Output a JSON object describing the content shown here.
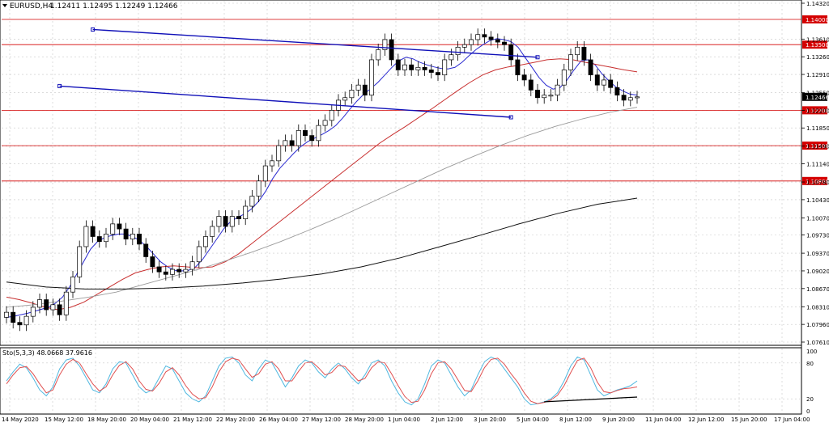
{
  "header": {
    "symbol": "EURUSD,H4",
    "ohlc": "1.12411 1.12495 1.12249 1.12466"
  },
  "colors": {
    "bull_candle": "#ffffff",
    "bear_candle": "#000000",
    "support_resistance": "#d40000",
    "channel": "#1010b8",
    "ma_fast": "#2a2ad0",
    "ma_mid": "#c83030",
    "ma_slow_gray": "#9a9a9a",
    "ma_slow_black": "#101010",
    "stoch_main": "#4fb8e0",
    "stoch_signal": "#e05050"
  },
  "chart_data": [
    {
      "type": "candlestick",
      "symbol": "EURUSD",
      "timeframe": "H4",
      "last_price": "1.12466",
      "ylim": [
        1.0761,
        1.1432
      ],
      "y_ticks": [
        "1.14320",
        "1.13610",
        "1.13260",
        "1.12910",
        "1.12550",
        "1.12200",
        "1.11850",
        "1.11490",
        "1.11140",
        "1.10780",
        "1.10430",
        "1.10070",
        "1.09730",
        "1.09370",
        "1.09020",
        "1.08670",
        "1.08310",
        "1.07960",
        "1.07610"
      ],
      "x_ticks": [
        "14 May 2020",
        "15 May 12:00",
        "18 May 20:00",
        "20 May 04:00",
        "21 May 12:00",
        "22 May 20:00",
        "26 May 04:00",
        "27 May 12:00",
        "28 May 20:00",
        "1 Jun 04:00",
        "2 Jun 12:00",
        "3 Jun 20:00",
        "5 Jun 04:00",
        "8 Jun 12:00",
        "9 Jun 20:00",
        "11 Jun 04:00",
        "12 Jun 12:00",
        "15 Jun 20:00",
        "17 Jun 04:00"
      ],
      "horizontal_levels": [
        "1.14000",
        "1.13500",
        "1.12200",
        "1.11500",
        "1.10800"
      ],
      "price_tag": "1.12466",
      "channel": {
        "upper": [
          [
            13,
            1.138
          ],
          [
            74,
            1.133
          ]
        ],
        "lower": [
          [
            8,
            1.1268
          ],
          [
            74,
            1.1208
          ]
        ]
      },
      "candles_close": [
        1.082,
        1.08,
        1.0795,
        1.0812,
        1.083,
        1.0845,
        1.0825,
        1.0835,
        1.0815,
        1.086,
        1.089,
        1.095,
        1.099,
        1.097,
        1.096,
        1.0975,
        1.0995,
        1.0985,
        1.0965,
        1.0975,
        1.0955,
        1.093,
        1.091,
        1.09,
        1.0895,
        1.0905,
        1.09,
        1.0905,
        1.092,
        1.095,
        1.097,
        1.099,
        1.101,
        1.099,
        1.101,
        1.1005,
        1.103,
        1.105,
        1.108,
        1.111,
        1.112,
        1.115,
        1.116,
        1.115,
        1.118,
        1.117,
        1.116,
        1.119,
        1.12,
        1.122,
        1.124,
        1.1245,
        1.126,
        1.127,
        1.125,
        1.132,
        1.134,
        1.136,
        1.132,
        1.13,
        1.131,
        1.13,
        1.1305,
        1.13,
        1.1295,
        1.129,
        1.132,
        1.133,
        1.1345,
        1.135,
        1.136,
        1.137,
        1.1365,
        1.136,
        1.1355,
        1.135,
        1.132,
        1.129,
        1.128,
        1.126,
        1.1245,
        1.125,
        1.125,
        1.127,
        1.13,
        1.133,
        1.1345,
        1.132,
        1.129,
        1.127,
        1.128,
        1.1265,
        1.125,
        1.124,
        1.1245,
        1.12466
      ],
      "moving_averages": [
        {
          "name": "fast",
          "values": [
            1.081,
            1.0812,
            1.0815,
            1.0818,
            1.0822,
            1.0826,
            1.083,
            1.0838,
            1.085,
            1.087,
            1.0895,
            1.092,
            1.0945,
            1.096,
            1.0968,
            1.0972,
            1.0975,
            1.0975,
            1.097,
            1.0962,
            1.095,
            1.0935,
            1.092,
            1.091,
            1.0903,
            1.0902,
            1.0903,
            1.091,
            1.0925,
            1.0945,
            1.0965,
            1.0985,
            1.1,
            1.1008,
            1.1015,
            1.1025,
            1.104,
            1.106,
            1.1085,
            1.1105,
            1.112,
            1.1135,
            1.1148,
            1.1158,
            1.1165,
            1.1172,
            1.118,
            1.119,
            1.1205,
            1.1222,
            1.1238,
            1.1252,
            1.1263,
            1.1275,
            1.129,
            1.1305,
            1.1318,
            1.1325,
            1.1322,
            1.1315,
            1.131,
            1.1306,
            1.1303,
            1.1302,
            1.1305,
            1.1315,
            1.1328,
            1.134,
            1.135,
            1.1358,
            1.1362,
            1.136,
            1.1356,
            1.1345,
            1.1325,
            1.1305,
            1.1285,
            1.127,
            1.1262,
            1.1265,
            1.128,
            1.13,
            1.1318,
            1.132,
            1.131,
            1.1292,
            1.1278,
            1.1266,
            1.1258,
            1.1252,
            1.125
          ]
        },
        {
          "name": "mid",
          "values": [
            1.085,
            1.0845,
            1.0838,
            1.083,
            1.0825,
            1.083,
            1.084,
            1.0855,
            1.087,
            1.0885,
            1.0898,
            1.0905,
            1.091,
            1.0912,
            1.091,
            1.0908,
            1.091,
            1.092,
            1.0935,
            1.0955,
            1.0975,
            1.0995,
            1.1015,
            1.1035,
            1.1055,
            1.1075,
            1.1095,
            1.1115,
            1.1135,
            1.1155,
            1.1172,
            1.1188,
            1.1205,
            1.1222,
            1.124,
            1.1258,
            1.1275,
            1.129,
            1.13,
            1.1306,
            1.131,
            1.1315,
            1.132,
            1.1322,
            1.132,
            1.1315,
            1.131,
            1.1305,
            1.13,
            1.1296
          ]
        },
        {
          "name": "slow-gray",
          "values": [
            1.083,
            1.0835,
            1.0842,
            1.085,
            1.086,
            1.0875,
            1.089,
            1.0905,
            1.0922,
            1.094,
            1.096,
            1.0982,
            1.1005,
            1.103,
            1.1055,
            1.108,
            1.1105,
            1.1128,
            1.115,
            1.117,
            1.1188,
            1.1203,
            1.1216,
            1.1226
          ]
        },
        {
          "name": "slow-black",
          "values": [
            1.088,
            1.087,
            1.0866,
            1.0866,
            1.0868,
            1.0872,
            1.0878,
            1.0886,
            1.0896,
            1.091,
            1.0928,
            1.095,
            1.0972,
            1.0995,
            1.1016,
            1.1034,
            1.1046
          ]
        }
      ]
    },
    {
      "type": "line",
      "title": "Sto(5,3,3) 48.0668 37.9616",
      "ylim": [
        0,
        100
      ],
      "y_ticks": [
        "100",
        "80",
        "20",
        "0"
      ],
      "series": [
        {
          "values": [
            50,
            65,
            78,
            72,
            55,
            35,
            25,
            40,
            70,
            85,
            88,
            75,
            55,
            35,
            30,
            45,
            70,
            82,
            80,
            60,
            40,
            30,
            35,
            55,
            75,
            70,
            50,
            30,
            20,
            15,
            25,
            50,
            75,
            88,
            90,
            80,
            60,
            50,
            70,
            85,
            80,
            60,
            40,
            55,
            75,
            85,
            80,
            65,
            55,
            70,
            80,
            70,
            55,
            45,
            60,
            80,
            85,
            75,
            50,
            30,
            15,
            10,
            20,
            45,
            75,
            85,
            80,
            60,
            40,
            25,
            35,
            60,
            82,
            90,
            85,
            70,
            55,
            40,
            20,
            10,
            12,
            15,
            20,
            30,
            50,
            75,
            90,
            85,
            60,
            35,
            25,
            30,
            35,
            38,
            42,
            50
          ]
        },
        {
          "values": [
            45,
            60,
            72,
            74,
            62,
            45,
            30,
            35,
            60,
            78,
            86,
            80,
            62,
            45,
            33,
            40,
            60,
            76,
            82,
            70,
            50,
            36,
            33,
            46,
            65,
            72,
            60,
            42,
            28,
            20,
            22,
            40,
            65,
            82,
            88,
            85,
            70,
            56,
            62,
            78,
            82,
            70,
            50,
            50,
            66,
            80,
            82,
            72,
            60,
            64,
            76,
            74,
            62,
            50,
            54,
            72,
            82,
            80,
            62,
            42,
            24,
            14,
            16,
            35,
            62,
            80,
            82,
            70,
            52,
            34,
            32,
            50,
            72,
            86,
            88,
            78,
            62,
            48,
            30,
            16,
            12,
            14,
            18,
            26,
            42,
            64,
            84,
            88,
            72,
            48,
            32,
            30,
            34,
            37,
            38,
            40
          ]
        }
      ]
    }
  ]
}
